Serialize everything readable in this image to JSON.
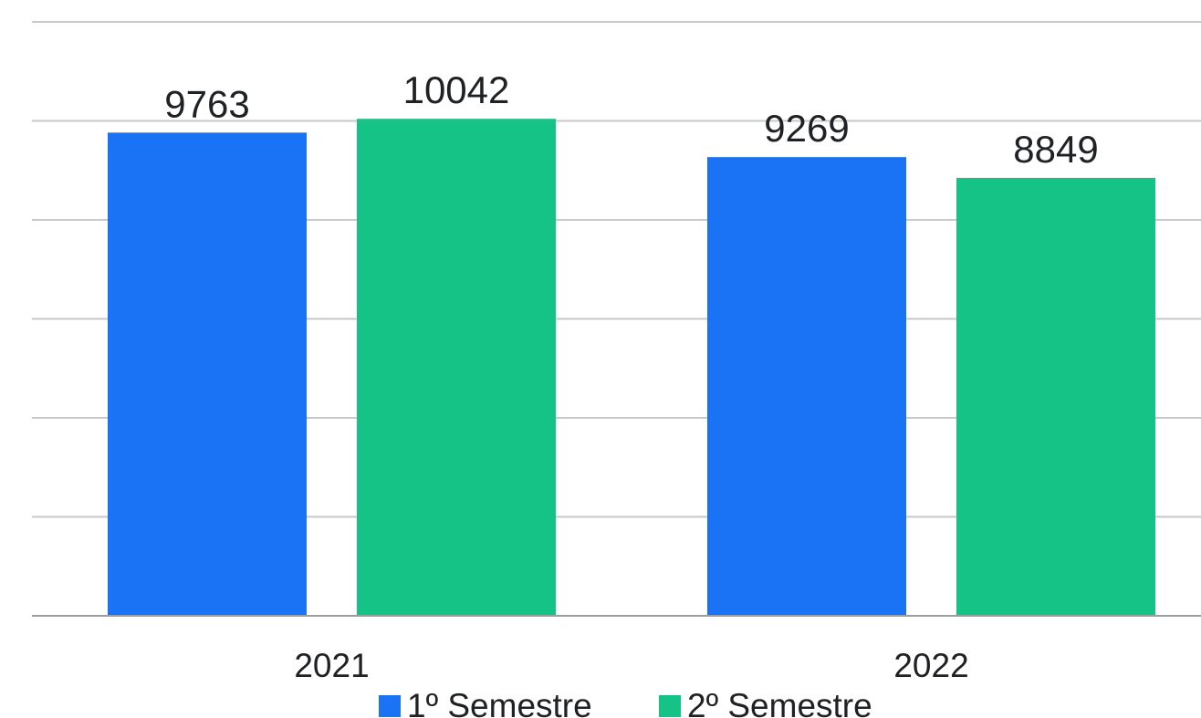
{
  "chart_data": {
    "type": "bar",
    "categories": [
      "2021",
      "2022"
    ],
    "series": [
      {
        "name": "1º Semestre",
        "values": [
          9763,
          9269
        ],
        "color": "#1a73f5"
      },
      {
        "name": "2º Semestre",
        "values": [
          10042,
          8849
        ],
        "color": "#15c386"
      }
    ],
    "ylim": [
      0,
      12000
    ],
    "grid": true,
    "legend_position": "bottom"
  }
}
